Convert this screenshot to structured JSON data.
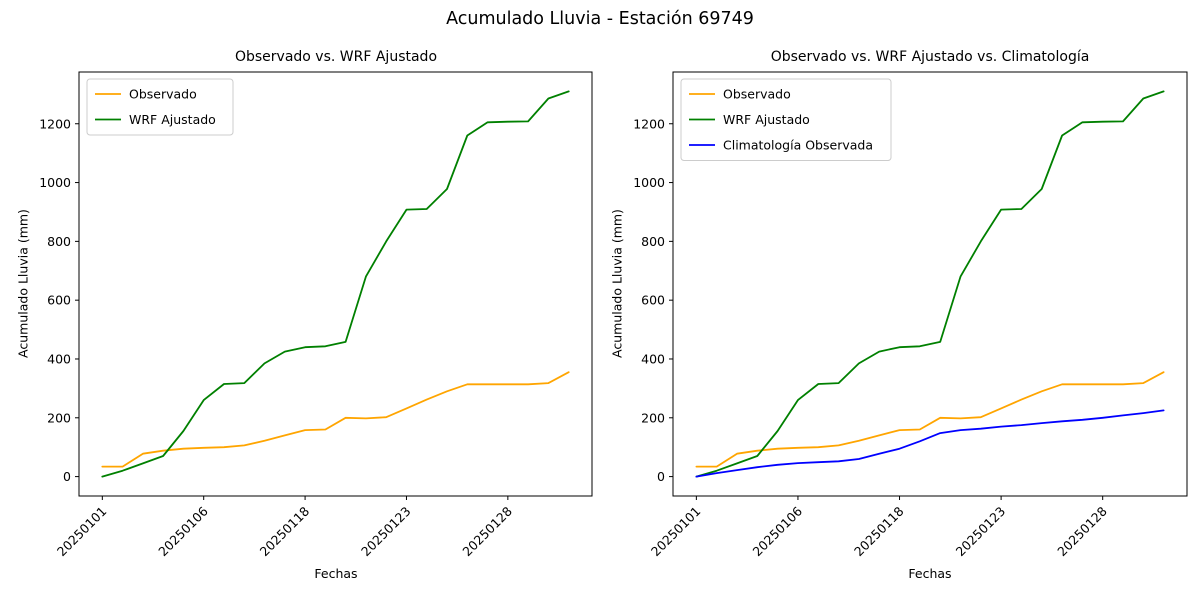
{
  "figure_title": "Acumulado Lluvia - Estación 69749",
  "chart_data": [
    {
      "type": "line",
      "title": "Observado vs. WRF Ajustado",
      "xlabel": "Fechas",
      "ylabel": "Acumulado Lluvia (mm)",
      "x_tick_labels": [
        "20250101",
        "20250106",
        "20250118",
        "20250123",
        "20250128"
      ],
      "x_tick_positions": [
        0,
        5,
        10,
        15,
        20
      ],
      "n_points": 24,
      "yticks": [
        0,
        200,
        400,
        600,
        800,
        1000,
        1200
      ],
      "ylim": [
        -66,
        1376
      ],
      "xlim": [
        -1.15,
        24.15
      ],
      "grid": false,
      "legend_loc": "upper left",
      "series": [
        {
          "name": "Observado",
          "color": "#FFA500",
          "values": [
            34,
            34,
            78,
            88,
            95,
            98,
            100,
            106,
            122,
            140,
            158,
            160,
            200,
            198,
            202,
            232,
            262,
            290,
            314,
            314,
            314,
            314,
            318,
            355
          ]
        },
        {
          "name": "WRF Ajustado",
          "color": "#008000",
          "values": [
            0,
            20,
            45,
            70,
            155,
            260,
            315,
            318,
            385,
            425,
            440,
            443,
            458,
            680,
            800,
            908,
            910,
            978,
            1160,
            1205,
            1207,
            1208,
            1286,
            1310
          ]
        }
      ]
    },
    {
      "type": "line",
      "title": "Observado vs. WRF Ajustado vs. Climatología",
      "xlabel": "Fechas",
      "ylabel": "Acumulado Lluvia (mm)",
      "x_tick_labels": [
        "20250101",
        "20250106",
        "20250118",
        "20250123",
        "20250128"
      ],
      "x_tick_positions": [
        0,
        5,
        10,
        15,
        20
      ],
      "n_points": 24,
      "yticks": [
        0,
        200,
        400,
        600,
        800,
        1000,
        1200
      ],
      "ylim": [
        -66,
        1376
      ],
      "xlim": [
        -1.15,
        24.15
      ],
      "grid": false,
      "legend_loc": "upper left",
      "series": [
        {
          "name": "Observado",
          "color": "#FFA500",
          "values": [
            34,
            34,
            78,
            88,
            95,
            98,
            100,
            106,
            122,
            140,
            158,
            160,
            200,
            198,
            202,
            232,
            262,
            290,
            314,
            314,
            314,
            314,
            318,
            355
          ]
        },
        {
          "name": "WRF Ajustado",
          "color": "#008000",
          "values": [
            0,
            20,
            45,
            70,
            155,
            260,
            315,
            318,
            385,
            425,
            440,
            443,
            458,
            680,
            800,
            908,
            910,
            978,
            1160,
            1205,
            1207,
            1208,
            1286,
            1310
          ]
        },
        {
          "name": "Climatología Observada",
          "color": "#0000FF",
          "values": [
            0,
            12,
            22,
            32,
            40,
            46,
            49,
            52,
            60,
            78,
            95,
            120,
            148,
            158,
            163,
            170,
            175,
            182,
            188,
            193,
            200,
            208,
            216,
            225
          ]
        }
      ]
    }
  ]
}
